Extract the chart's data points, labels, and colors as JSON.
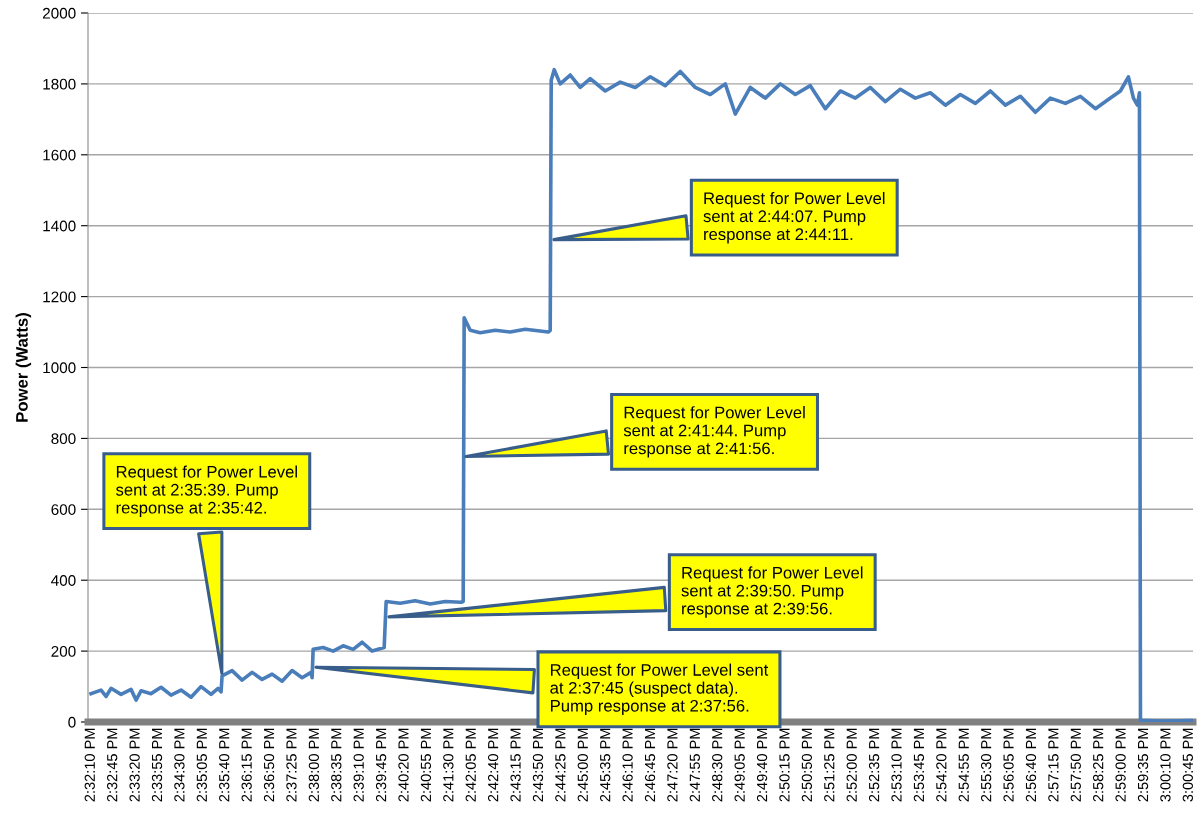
{
  "chart_data": {
    "type": "line",
    "ylabel": "Power (Watts)",
    "x": [
      14.53611,
      14.54045,
      14.54262,
      14.54479,
      14.54913,
      14.55347,
      14.55564,
      14.55781,
      14.56215,
      14.56649,
      14.57083,
      14.57517,
      14.57951,
      14.58385,
      14.58819,
      14.59123,
      14.59253,
      14.59297,
      14.59731,
      14.60165,
      14.60599,
      14.61033,
      14.61467,
      14.61901,
      14.62335,
      14.62769,
      14.6316,
      14.63203,
      14.63247,
      14.63681,
      14.64115,
      14.64549,
      14.64983,
      14.65374,
      14.65808,
      14.66329,
      14.66415,
      14.67023,
      14.67674,
      14.68325,
      14.68976,
      14.6967,
      14.69757,
      14.698,
      14.70061,
      14.70495,
      14.71146,
      14.71797,
      14.72448,
      14.73446,
      14.73533,
      14.73576,
      14.73706,
      14.73967,
      14.74401,
      14.74835,
      14.75269,
      14.7592,
      14.76571,
      14.77222,
      14.77873,
      14.78524,
      14.79175,
      14.79826,
      14.80477,
      14.81128,
      14.81562,
      14.82213,
      14.82864,
      14.83515,
      14.84166,
      14.84817,
      14.85468,
      14.86119,
      14.8677,
      14.87421,
      14.88072,
      14.88723,
      14.89374,
      14.90025,
      14.90676,
      14.91327,
      14.91978,
      14.92629,
      14.9328,
      14.93931,
      14.94582,
      14.95233,
      14.95884,
      14.96535,
      14.97186,
      14.97837,
      14.98271,
      14.98618,
      14.98835,
      14.99009,
      14.99096,
      14.99141,
      15.00009,
      15.01398
    ],
    "series": [
      {
        "color": "#4a7ebb",
        "values": [
          80,
          90,
          72,
          95,
          78,
          92,
          62,
          88,
          80,
          98,
          76,
          90,
          70,
          100,
          78,
          95,
          85,
          130,
          145,
          118,
          140,
          120,
          135,
          115,
          145,
          125,
          140,
          125,
          205,
          210,
          200,
          215,
          205,
          225,
          200,
          210,
          340,
          335,
          342,
          333,
          340,
          338,
          340,
          1140,
          1105,
          1098,
          1105,
          1100,
          1108,
          1100,
          1105,
          1810,
          1840,
          1800,
          1825,
          1790,
          1815,
          1780,
          1805,
          1790,
          1820,
          1795,
          1835,
          1790,
          1770,
          1800,
          1715,
          1790,
          1760,
          1800,
          1770,
          1795,
          1730,
          1780,
          1760,
          1790,
          1750,
          1785,
          1760,
          1775,
          1740,
          1770,
          1745,
          1780,
          1740,
          1765,
          1720,
          1760,
          1745,
          1765,
          1730,
          1760,
          1780,
          1820,
          1760,
          1740,
          1775,
          5,
          3,
          4
        ]
      }
    ],
    "xlim": [
      14.5348,
      15.0142
    ],
    "xticks": [
      {
        "value": 14.53611,
        "label": "2:32:10 PM"
      },
      {
        "value": 14.54583,
        "label": "2:32:45 PM"
      },
      {
        "value": 14.55556,
        "label": "2:33:20 PM"
      },
      {
        "value": 14.56528,
        "label": "2:33:55 PM"
      },
      {
        "value": 14.575,
        "label": "2:34:30 PM"
      },
      {
        "value": 14.58472,
        "label": "2:35:05 PM"
      },
      {
        "value": 14.59444,
        "label": "2:35:40 PM"
      },
      {
        "value": 14.60417,
        "label": "2:36:15 PM"
      },
      {
        "value": 14.61389,
        "label": "2:36:50 PM"
      },
      {
        "value": 14.62361,
        "label": "2:37:25 PM"
      },
      {
        "value": 14.63333,
        "label": "2:38:00 PM"
      },
      {
        "value": 14.64306,
        "label": "2:38:35 PM"
      },
      {
        "value": 14.65278,
        "label": "2:39:10 PM"
      },
      {
        "value": 14.6625,
        "label": "2:39:45 PM"
      },
      {
        "value": 14.67222,
        "label": "2:40:20 PM"
      },
      {
        "value": 14.68194,
        "label": "2:40:55 PM"
      },
      {
        "value": 14.69167,
        "label": "2:41:30 PM"
      },
      {
        "value": 14.70139,
        "label": "2:42:05 PM"
      },
      {
        "value": 14.71111,
        "label": "2:42:40 PM"
      },
      {
        "value": 14.72083,
        "label": "2:43:15 PM"
      },
      {
        "value": 14.73056,
        "label": "2:43:50 PM"
      },
      {
        "value": 14.74028,
        "label": "2:44:25 PM"
      },
      {
        "value": 14.75,
        "label": "2:45:00 PM"
      },
      {
        "value": 14.75972,
        "label": "2:45:35 PM"
      },
      {
        "value": 14.76944,
        "label": "2:46:10 PM"
      },
      {
        "value": 14.77917,
        "label": "2:46:45 PM"
      },
      {
        "value": 14.78889,
        "label": "2:47:20 PM"
      },
      {
        "value": 14.79861,
        "label": "2:47:55 PM"
      },
      {
        "value": 14.80833,
        "label": "2:48:30 PM"
      },
      {
        "value": 14.81806,
        "label": "2:49:05 PM"
      },
      {
        "value": 14.82778,
        "label": "2:49:40 PM"
      },
      {
        "value": 14.8375,
        "label": "2:50:15 PM"
      },
      {
        "value": 14.84722,
        "label": "2:50:50 PM"
      },
      {
        "value": 14.85694,
        "label": "2:51:25 PM"
      },
      {
        "value": 14.86667,
        "label": "2:52:00 PM"
      },
      {
        "value": 14.87639,
        "label": "2:52:35 PM"
      },
      {
        "value": 14.88611,
        "label": "2:53:10 PM"
      },
      {
        "value": 14.89583,
        "label": "2:53:45 PM"
      },
      {
        "value": 14.90556,
        "label": "2:54:20 PM"
      },
      {
        "value": 14.91528,
        "label": "2:54:55 PM"
      },
      {
        "value": 14.925,
        "label": "2:55:30 PM"
      },
      {
        "value": 14.93472,
        "label": "2:56:05 PM"
      },
      {
        "value": 14.94444,
        "label": "2:56:40 PM"
      },
      {
        "value": 14.95417,
        "label": "2:57:15 PM"
      },
      {
        "value": 14.96389,
        "label": "2:57:50 PM"
      },
      {
        "value": 14.97361,
        "label": "2:58:25 PM"
      },
      {
        "value": 14.98333,
        "label": "2:59:00 PM"
      },
      {
        "value": 14.99306,
        "label": "2:59:35 PM"
      },
      {
        "value": 15.00278,
        "label": "3:00:10 PM"
      },
      {
        "value": 15.0125,
        "label": "3:00:45 PM"
      }
    ],
    "ylim": [
      0,
      2000
    ],
    "yticks": [
      0,
      200,
      400,
      600,
      800,
      1000,
      1200,
      1400,
      1600,
      1800,
      2000
    ],
    "grid": "y",
    "legend": false,
    "marker": "none",
    "line_style": "solid",
    "annotations": [
      {
        "text": "Request for Power Level\nsent at 2:35:39. Pump\nresponse at 2:35:42.",
        "x": 14.59297,
        "y": 130
      },
      {
        "text": "Request for Power Level sent\nat 2:37:45 (suspect data).\nPump response at 2:37:56.",
        "x": 14.63247,
        "y": 155
      },
      {
        "text": "Request for Power Level\nsent at 2:39:50. Pump\nresponse at 2:39:56.",
        "x": 14.66415,
        "y": 296
      },
      {
        "text": "Request for Power Level\nsent at 2:41:44. Pump\nresponse at 2:41:56.",
        "x": 14.69757,
        "y": 748
      },
      {
        "text": "Request for Power Level\nsent at 2:44:07. Pump\nresponse at 2:44:11.",
        "x": 14.73576,
        "y": 1360
      }
    ]
  }
}
